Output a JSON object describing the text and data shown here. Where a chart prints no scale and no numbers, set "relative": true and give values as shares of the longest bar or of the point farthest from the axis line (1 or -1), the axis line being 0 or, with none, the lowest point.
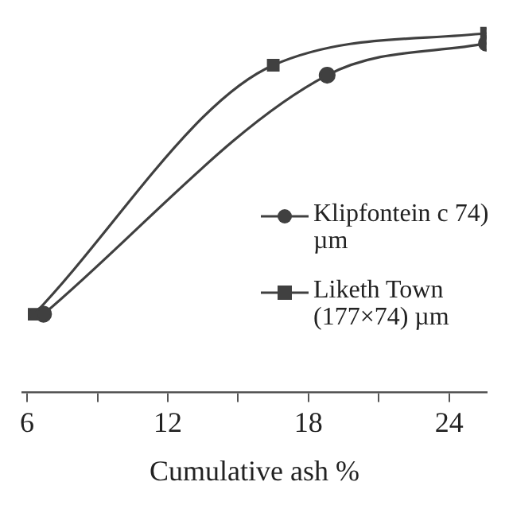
{
  "chart_data": {
    "type": "line",
    "relative": true,
    "xlabel": "Cumulative ash %",
    "xlim": [
      5.8,
      25.6
    ],
    "xticks": [
      6,
      {
        "value": 9,
        "label": null
      },
      12,
      {
        "value": 15,
        "label": null
      },
      18,
      {
        "value": 21,
        "label": null
      },
      24
    ],
    "series": [
      {
        "name": "Klipfontein c 74) µm",
        "color": "#404040",
        "marker": "circle",
        "x": [
          6.7,
          18.8,
          25.6
        ],
        "values": [
          0.218,
          0.883,
          0.972
        ]
      },
      {
        "name": "Liketh Town (177×74) µm",
        "color": "#404040",
        "marker": "square",
        "x": [
          6.3,
          16.5,
          25.6
        ],
        "values": [
          0.218,
          0.911,
          1
        ]
      }
    ],
    "grid": false,
    "legend": "right",
    "line_style": "solid",
    "tick_labels": "x"
  }
}
